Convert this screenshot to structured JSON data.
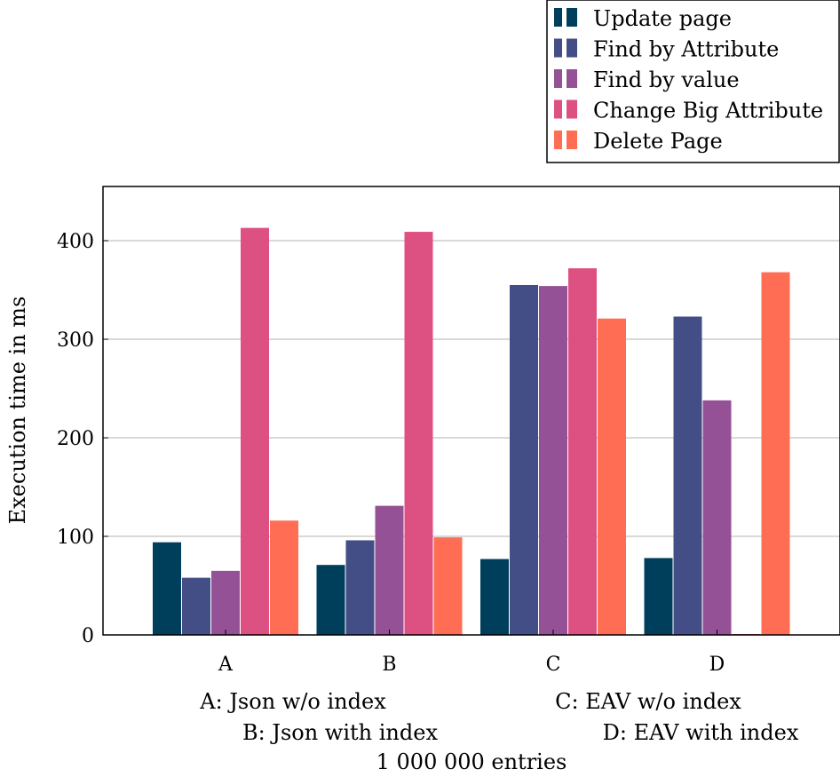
{
  "chart_data": {
    "type": "bar",
    "ylabel": "Execution time in ms",
    "xlabel": "",
    "categories": [
      "A",
      "B",
      "C",
      "D"
    ],
    "ylim": [
      0,
      455
    ],
    "yticks": [
      0,
      100,
      200,
      300,
      400
    ],
    "grid": "horizontal",
    "legend_position": "top-right",
    "series": [
      {
        "name": "Update page",
        "color": "#003f5c",
        "values": [
          94,
          71,
          77,
          78
        ]
      },
      {
        "name": "Find by Attribute",
        "color": "#444e86",
        "values": [
          58,
          96,
          355,
          323
        ]
      },
      {
        "name": "Find by value",
        "color": "#955196",
        "values": [
          65,
          131,
          354,
          238
        ]
      },
      {
        "name": "Change Big Attribute",
        "color": "#dd5182",
        "values": [
          413,
          409,
          372,
          0
        ]
      },
      {
        "name": "Delete Page",
        "color": "#ff6e54",
        "values": [
          116,
          99,
          321,
          368
        ]
      }
    ],
    "annotations": [
      "A: Json w/o index",
      "C: EAV w/o index",
      "B: Json with index",
      "D: EAV with index",
      "1 000 000 entries"
    ]
  }
}
